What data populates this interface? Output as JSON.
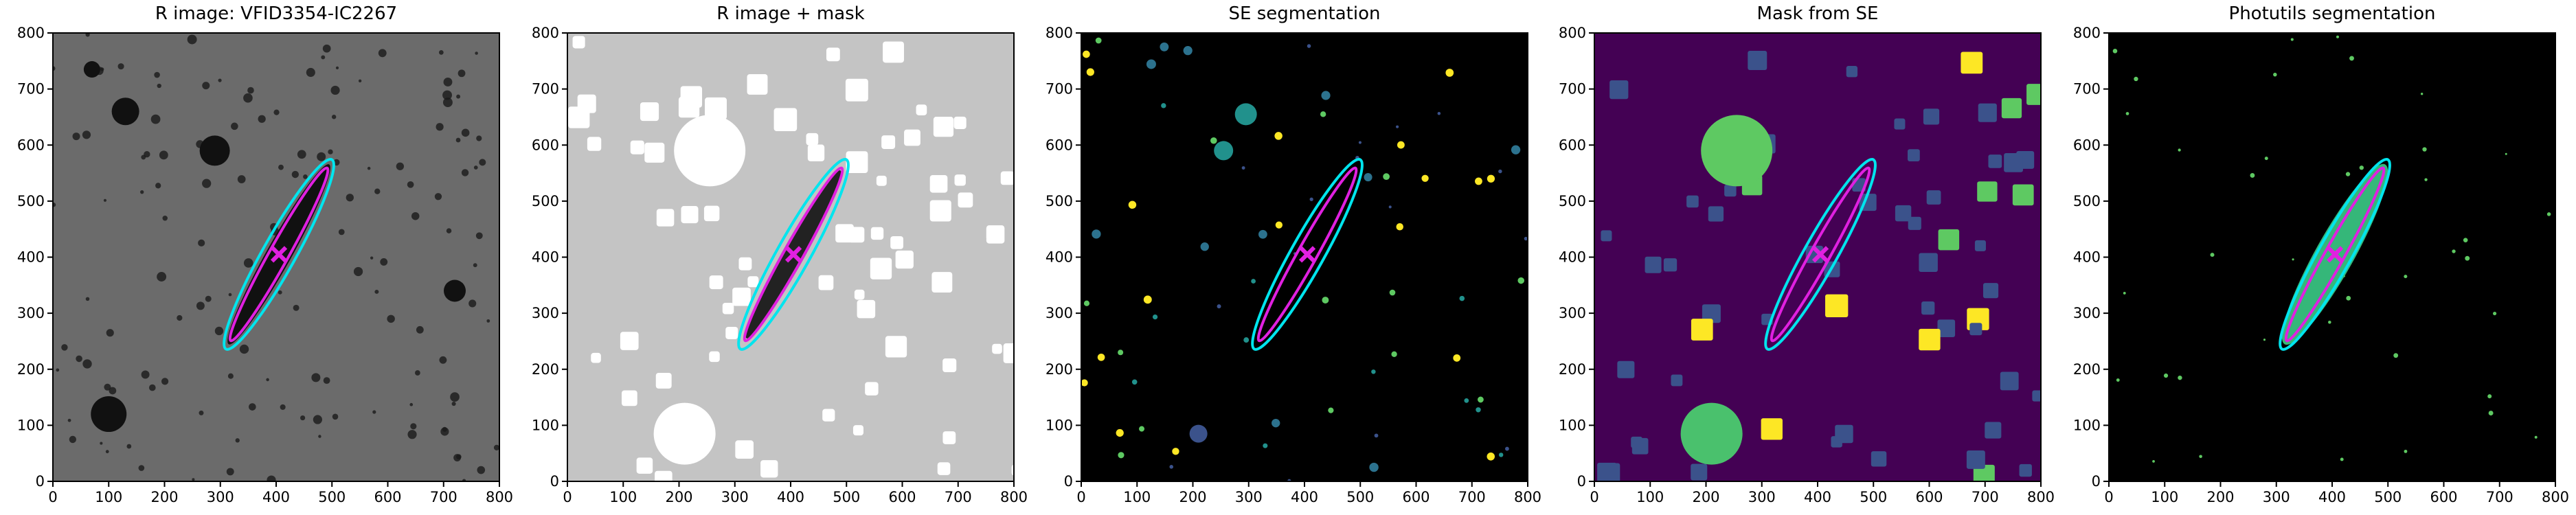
{
  "chart_data": [
    {
      "type": "image",
      "title": "R image: VFID3354-IC2267",
      "background": "#6b6b6b",
      "xlim": [
        0,
        800
      ],
      "ylim": [
        0,
        800
      ],
      "xticks": [
        0,
        100,
        200,
        300,
        400,
        500,
        600,
        700,
        800
      ],
      "yticks": [
        0,
        100,
        200,
        300,
        400,
        500,
        600,
        700,
        800
      ]
    },
    {
      "type": "image",
      "title": "R image + mask",
      "background": "#c4c4c4",
      "xlim": [
        0,
        800
      ],
      "ylim": [
        0,
        800
      ],
      "xticks": [
        0,
        100,
        200,
        300,
        400,
        500,
        600,
        700,
        800
      ],
      "yticks": [
        0,
        100,
        200,
        300,
        400,
        500,
        600,
        700,
        800
      ]
    },
    {
      "type": "image",
      "title": "SE segmentation",
      "background": "#000000",
      "xlim": [
        0,
        800
      ],
      "ylim": [
        0,
        800
      ],
      "xticks": [
        0,
        100,
        200,
        300,
        400,
        500,
        600,
        700,
        800
      ],
      "yticks": [
        0,
        100,
        200,
        300,
        400,
        500,
        600,
        700,
        800
      ]
    },
    {
      "type": "image",
      "title": "Mask from SE",
      "background": "#440154",
      "xlim": [
        0,
        800
      ],
      "ylim": [
        0,
        800
      ],
      "xticks": [
        0,
        100,
        200,
        300,
        400,
        500,
        600,
        700,
        800
      ],
      "yticks": [
        0,
        100,
        200,
        300,
        400,
        500,
        600,
        700,
        800
      ]
    },
    {
      "type": "image",
      "title": "Photutils segmentation",
      "background": "#000000",
      "xlim": [
        0,
        800
      ],
      "ylim": [
        0,
        800
      ],
      "xticks": [
        0,
        100,
        200,
        300,
        400,
        500,
        600,
        700,
        800
      ],
      "yticks": [
        0,
        100,
        200,
        300,
        400,
        500,
        600,
        700,
        800
      ]
    }
  ]
}
